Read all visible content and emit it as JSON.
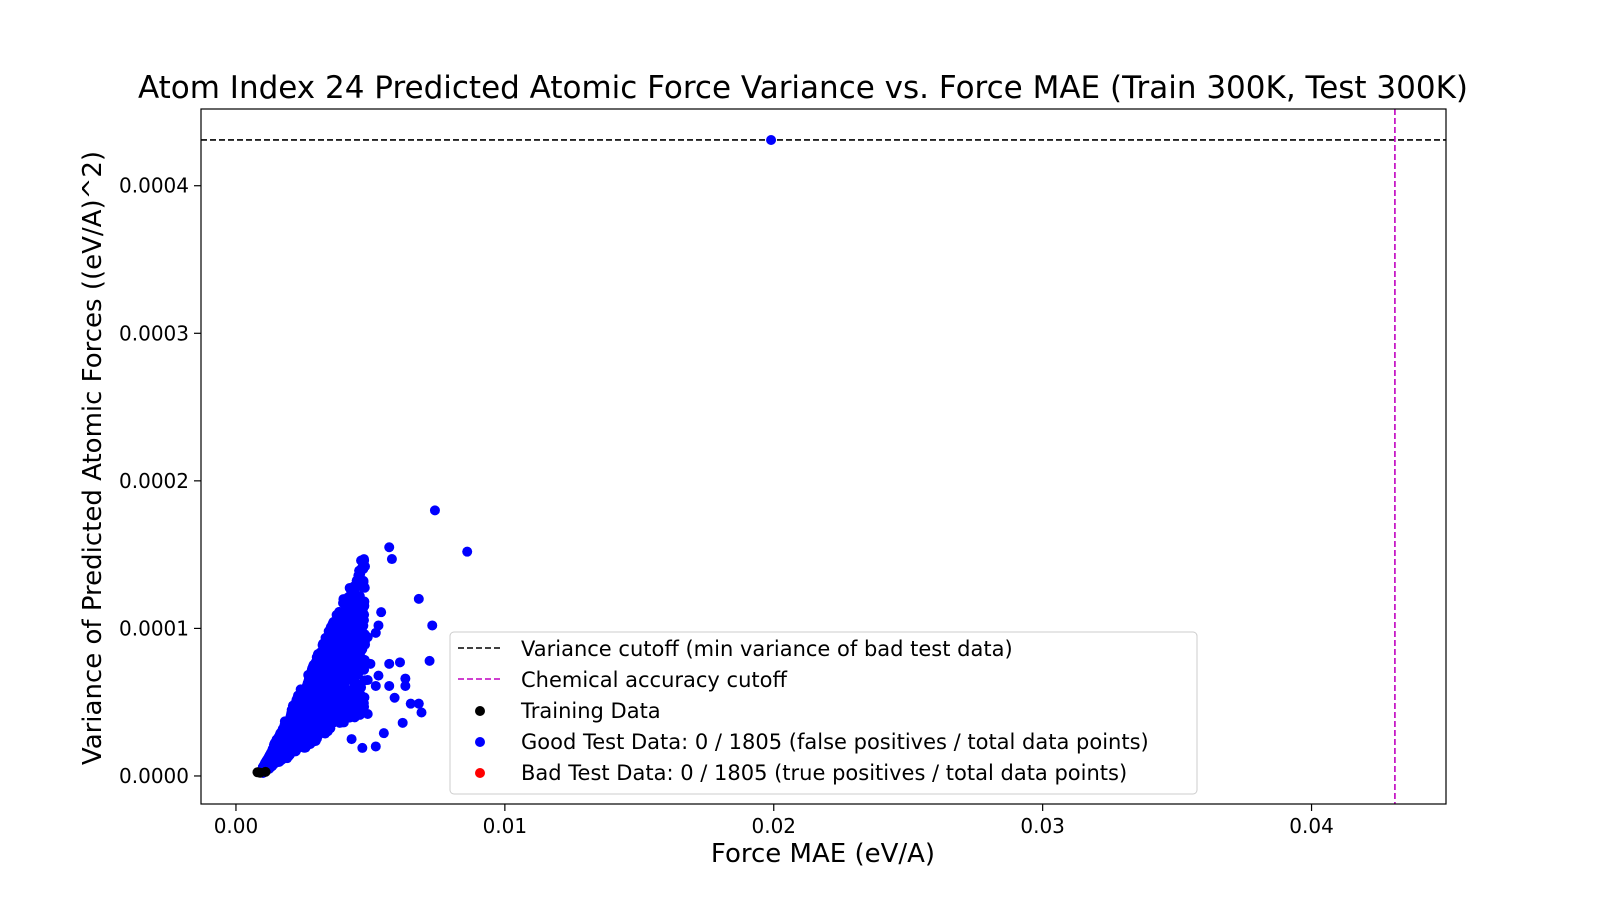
{
  "chart_data": {
    "type": "scatter",
    "title": "Atom Index 24 Predicted Atomic Force Variance vs. Force MAE (Train 300K, Test 300K)",
    "xlabel": "Force MAE (eV/A)",
    "ylabel": "Variance of Predicted Atomic Forces ((eV/A)^2)",
    "xlim": [
      -0.0013,
      0.045
    ],
    "ylim": [
      -1.9e-05,
      0.000452
    ],
    "xticks": [
      0.0,
      0.01,
      0.02,
      0.03,
      0.04
    ],
    "xtick_labels": [
      "0.00",
      "0.01",
      "0.02",
      "0.03",
      "0.04"
    ],
    "yticks": [
      0.0,
      0.0001,
      0.0002,
      0.0003,
      0.0004
    ],
    "ytick_labels": [
      "0.0000",
      "0.0001",
      "0.0002",
      "0.0003",
      "0.0004"
    ],
    "grid": false,
    "legend_position": "lower-center",
    "reference_lines": [
      {
        "orientation": "horizontal",
        "value": 0.000431,
        "color": "#000000",
        "style": "dashed",
        "label": "Variance cutoff (min variance of bad test data)"
      },
      {
        "orientation": "vertical",
        "value": 0.0431,
        "color": "#bf00bf",
        "style": "dashed",
        "label": "Chemical accuracy cutoff"
      }
    ],
    "series": [
      {
        "name": "Training Data",
        "color": "#000000",
        "points": [
          [
            0.0008,
            2.5e-06
          ],
          [
            0.0011,
            2.8e-06
          ],
          [
            0.0009,
            2.2e-06
          ]
        ]
      },
      {
        "name": "Good Test Data: 0 / 1805 (false positives / total data points)",
        "color": "#0000ff",
        "points": [
          [
            0.0199,
            0.000431
          ],
          [
            0.0074,
            0.00018
          ],
          [
            0.0086,
            0.000152
          ],
          [
            0.0057,
            0.000155
          ],
          [
            0.0058,
            0.000147
          ],
          [
            0.0068,
            0.00012
          ],
          [
            0.0054,
            0.000111
          ],
          [
            0.0073,
            0.000102
          ],
          [
            0.0047,
            0.000104
          ],
          [
            0.0041,
            0.000101
          ],
          [
            0.0053,
            0.000102
          ],
          [
            0.0052,
            9.7e-05
          ],
          [
            0.0049,
            9.4e-05
          ],
          [
            0.0048,
            8.9e-05
          ],
          [
            0.0042,
            7.9e-05
          ],
          [
            0.0045,
            7.8e-05
          ],
          [
            0.005,
            7.6e-05
          ],
          [
            0.0057,
            7.6e-05
          ],
          [
            0.0061,
            7.7e-05
          ],
          [
            0.0072,
            7.8e-05
          ],
          [
            0.0047,
            7.2e-05
          ],
          [
            0.0043,
            7.1e-05
          ],
          [
            0.0053,
            6.8e-05
          ],
          [
            0.0049,
            6.5e-05
          ],
          [
            0.0063,
            6.6e-05
          ],
          [
            0.0036,
            6.5e-05
          ],
          [
            0.0057,
            6.1e-05
          ],
          [
            0.0063,
            6.1e-05
          ],
          [
            0.0052,
            6.1e-05
          ],
          [
            0.0044,
            6.2e-05
          ],
          [
            0.0059,
            5.3e-05
          ],
          [
            0.0065,
            4.9e-05
          ],
          [
            0.0068,
            4.9e-05
          ],
          [
            0.0046,
            4.7e-05
          ],
          [
            0.0069,
            4.3e-05
          ],
          [
            0.0049,
            4.2e-05
          ],
          [
            0.004,
            4.3e-05
          ],
          [
            0.0062,
            3.6e-05
          ],
          [
            0.0055,
            2.9e-05
          ],
          [
            0.0052,
            2e-05
          ],
          [
            0.0047,
            1.9e-05
          ],
          [
            0.0043,
            2.5e-05
          ],
          [
            0.0039,
            5.8e-05
          ],
          [
            0.0041,
            5.2e-05
          ],
          [
            0.0044,
            5.5e-05
          ]
        ],
        "cluster": {
          "points": 1760,
          "x_range": [
            0.001,
            0.0048
          ],
          "y_min": 2e-06,
          "y_growth": 1.25e-05,
          "y_spread_per_x": 14
        }
      },
      {
        "name": "Bad Test Data: 0 / 1805 (true positives / total data points)",
        "color": "#ff0000",
        "points": []
      }
    ]
  }
}
